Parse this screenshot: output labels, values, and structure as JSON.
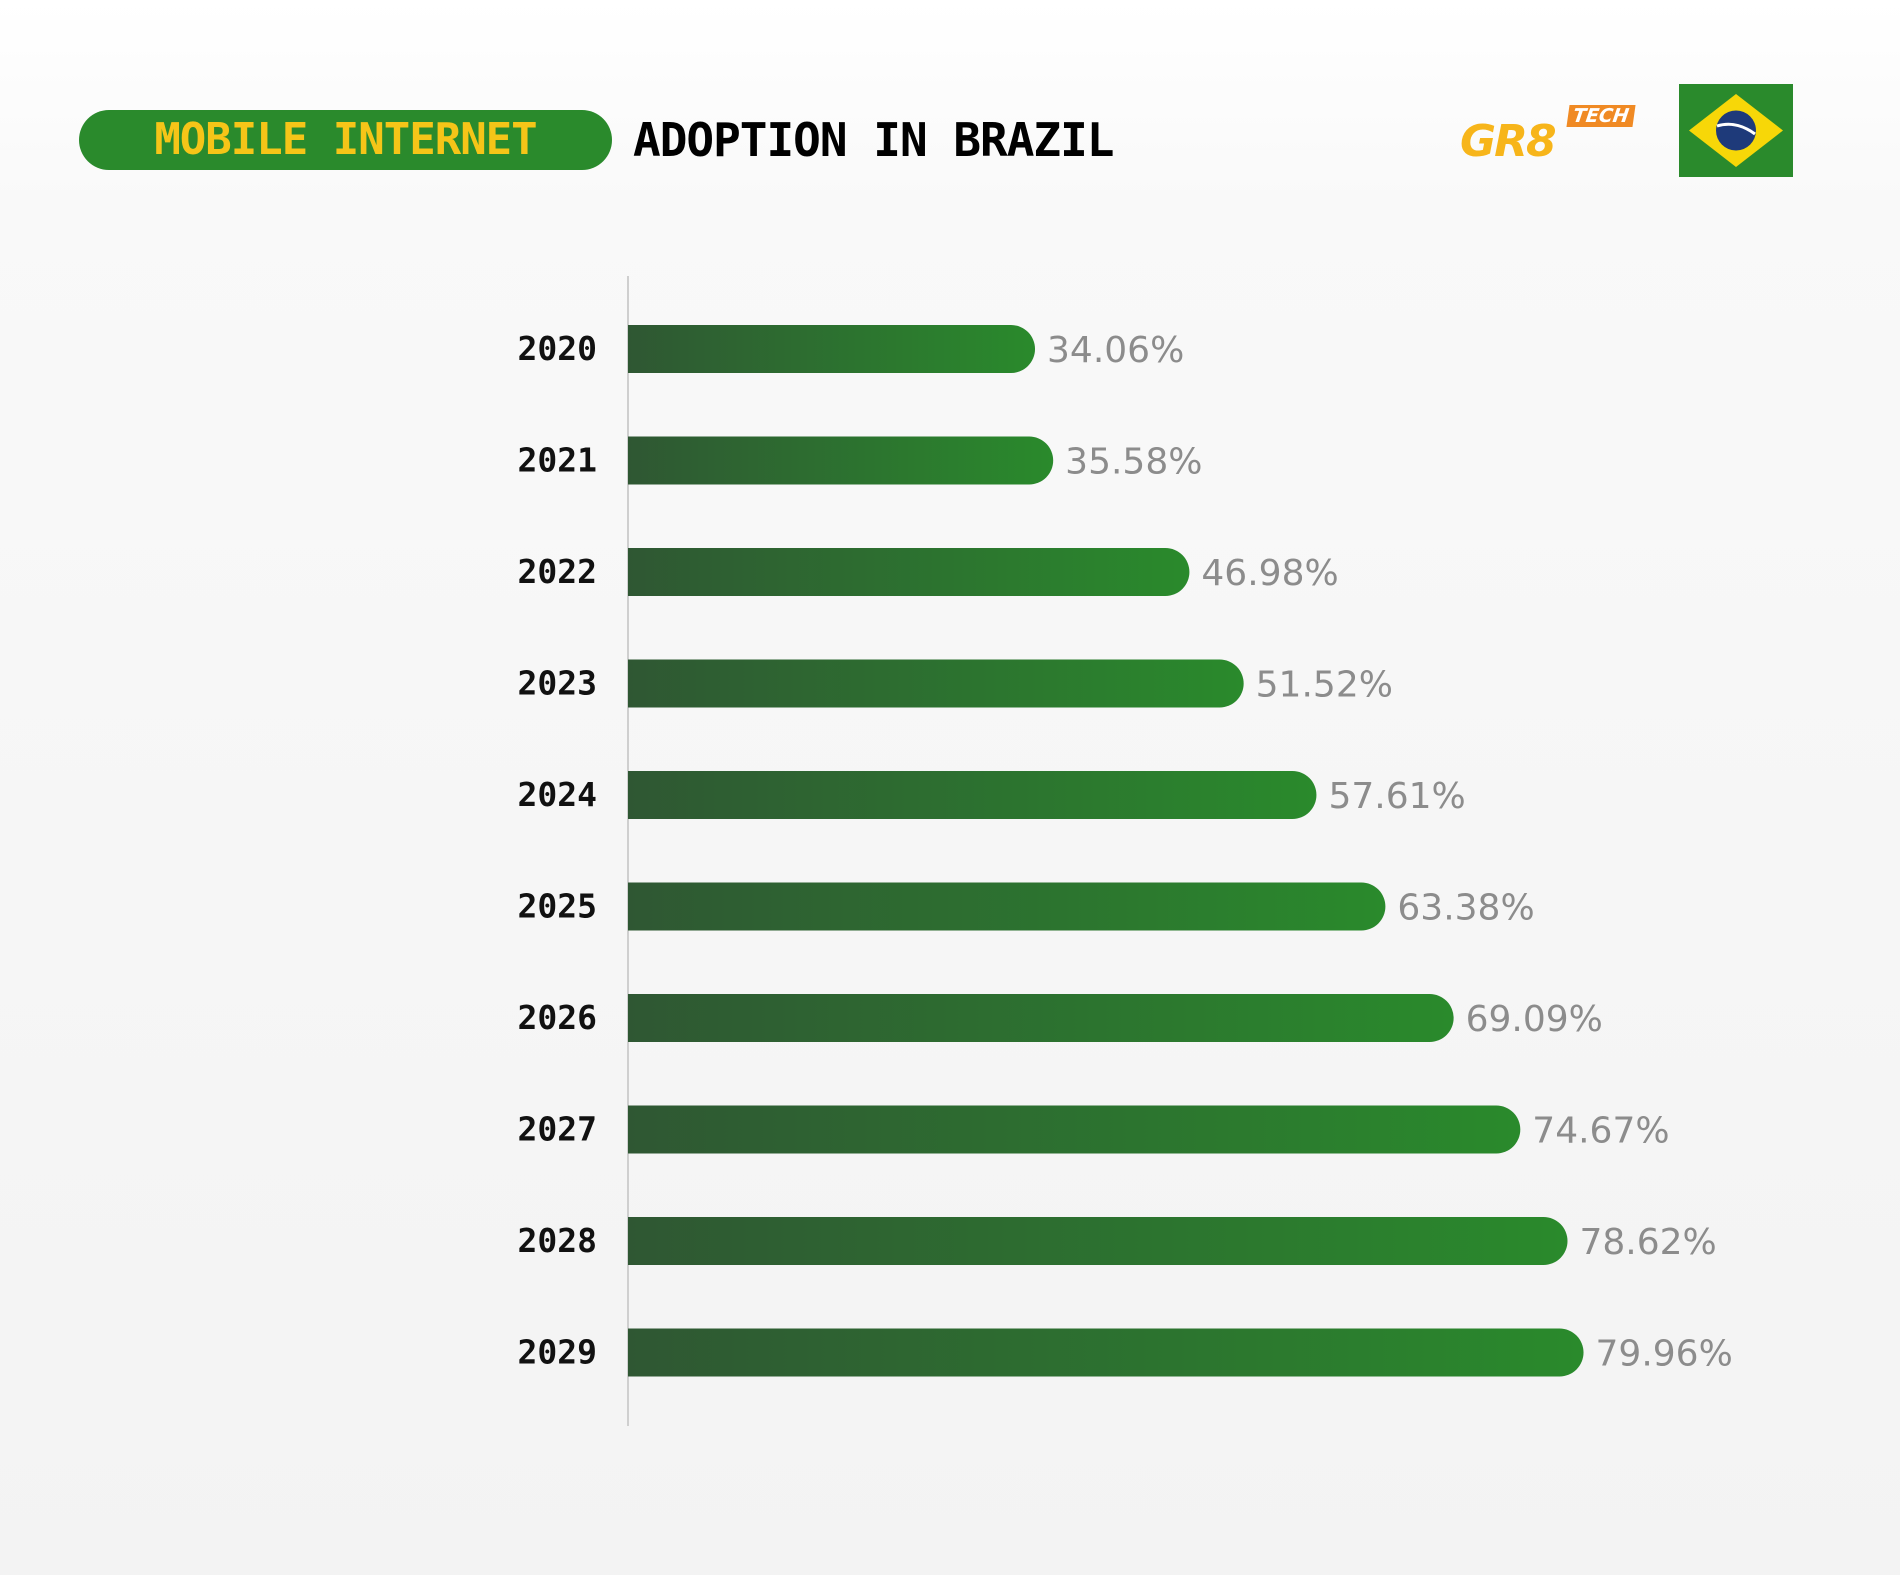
{
  "header": {
    "title_highlight": "MOBILE INTERNET",
    "title_rest": "ADOPTION IN BRAZIL"
  },
  "logo": {
    "main": "GR8",
    "badge": "TECH"
  },
  "flag": {
    "icon": "brazil-flag"
  },
  "colors": {
    "accent_green": "#2a8a2c",
    "bar_dark": "#2f5733",
    "highlight_yellow": "#f5c518",
    "logo_orange": "#f08a24"
  },
  "chart_data": {
    "type": "bar",
    "orientation": "horizontal",
    "title": "MOBILE INTERNET ADOPTION IN BRAZIL",
    "categories": [
      "2020",
      "2021",
      "2022",
      "2023",
      "2024",
      "2025",
      "2026",
      "2027",
      "2028",
      "2029"
    ],
    "values": [
      34.06,
      35.58,
      46.98,
      51.52,
      57.61,
      63.38,
      69.09,
      74.67,
      78.62,
      79.96
    ],
    "value_labels": [
      "34.06%",
      "35.58%",
      "46.98%",
      "51.52%",
      "57.61%",
      "63.38%",
      "69.09%",
      "74.67%",
      "78.62%",
      "79.96%"
    ],
    "unit": "%",
    "grid": false
  }
}
